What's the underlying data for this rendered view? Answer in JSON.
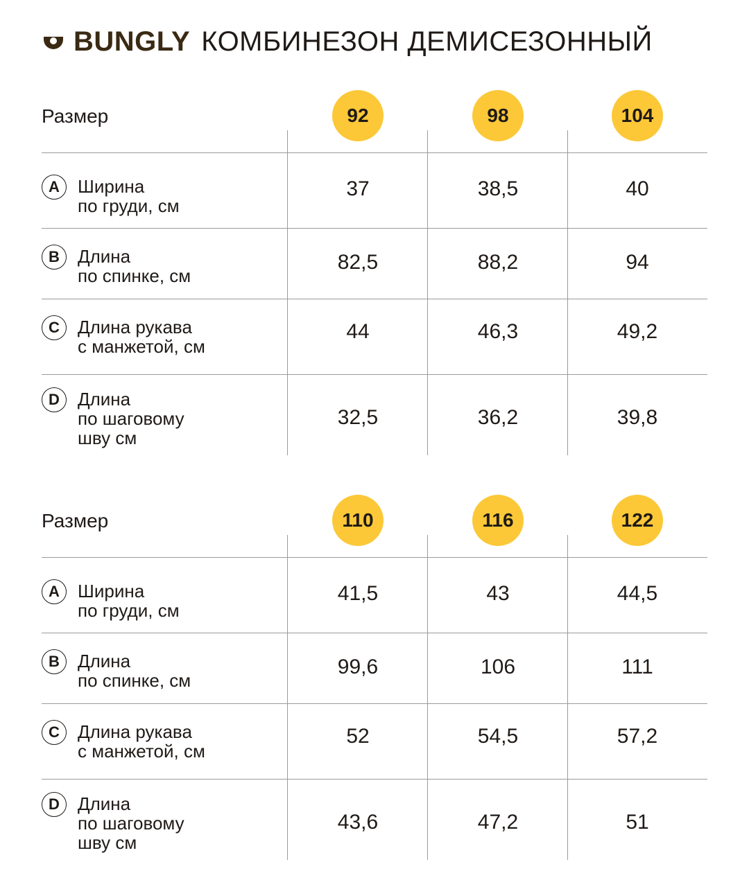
{
  "header": {
    "brand": "BUNGLY",
    "title": "КОМБИНЕЗОН ДЕМИСЕЗОННЫЙ"
  },
  "tables": [
    {
      "size_label": "Размер",
      "sizes": [
        "92",
        "98",
        "104"
      ],
      "rows": [
        {
          "letter": "A",
          "label": "Ширина\nпо груди, см",
          "values": [
            "37",
            "38,5",
            "40"
          ]
        },
        {
          "letter": "B",
          "label": "Длина\nпо спинке, см",
          "values": [
            "82,5",
            "88,2",
            "94"
          ]
        },
        {
          "letter": "C",
          "label": "Длина рукава\nс манжетой, см",
          "values": [
            "44",
            "46,3",
            "49,2"
          ]
        },
        {
          "letter": "D",
          "label": "Длина\nпо шаговому\nшву см",
          "values": [
            "32,5",
            "36,2",
            "39,8"
          ]
        }
      ]
    },
    {
      "size_label": "Размер",
      "sizes": [
        "110",
        "116",
        "122"
      ],
      "rows": [
        {
          "letter": "A",
          "label": "Ширина\nпо груди, см",
          "values": [
            "41,5",
            "43",
            "44,5"
          ]
        },
        {
          "letter": "B",
          "label": "Длина\nпо спинке, см",
          "values": [
            "99,6",
            "106",
            "111"
          ]
        },
        {
          "letter": "C",
          "label": "Длина рукава\nс манжетой, см",
          "values": [
            "52",
            "54,5",
            "57,2"
          ]
        },
        {
          "letter": "D",
          "label": "Длина\nпо шаговому\nшву см",
          "values": [
            "43,6",
            "47,2",
            "51"
          ]
        }
      ]
    }
  ],
  "colors": {
    "accent": "#fcc838",
    "brand": "#3a2a14",
    "line": "#9a9a9a"
  },
  "icons": {
    "logo": "smile-cup-icon"
  }
}
